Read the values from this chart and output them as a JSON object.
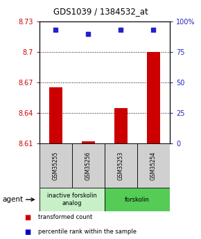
{
  "title": "GDS1039 / 1384532_at",
  "samples": [
    "GSM35255",
    "GSM35256",
    "GSM35253",
    "GSM35254"
  ],
  "red_values": [
    8.665,
    8.612,
    8.645,
    8.7
  ],
  "blue_values_pct": [
    93,
    90,
    93,
    93
  ],
  "ylim_left": [
    8.61,
    8.73
  ],
  "ylim_right": [
    0,
    100
  ],
  "yticks_left": [
    8.61,
    8.64,
    8.67,
    8.7,
    8.73
  ],
  "yticks_right": [
    0,
    25,
    50,
    75,
    100
  ],
  "ytick_labels_left": [
    "8.61",
    "8.64",
    "8.67",
    "8.7",
    "8.73"
  ],
  "ytick_labels_right": [
    "0",
    "25",
    "50",
    "75",
    "100%"
  ],
  "hlines": [
    8.7,
    8.67,
    8.64
  ],
  "groups": [
    {
      "label": "inactive forskolin\nanalog",
      "indices": [
        0,
        1
      ],
      "color": "#c8f0c8"
    },
    {
      "label": "forskolin",
      "indices": [
        2,
        3
      ],
      "color": "#55cc55"
    }
  ],
  "legend_items": [
    {
      "color": "#cc0000",
      "label": "transformed count"
    },
    {
      "color": "#0000cc",
      "label": "percentile rank within the sample"
    }
  ],
  "bar_color": "#cc0000",
  "dot_color": "#2222cc",
  "bar_baseline": 8.61,
  "background_color": "#ffffff",
  "label_color_left": "#cc0000",
  "label_color_right": "#2222bb",
  "sample_box_color": "#d0d0d0",
  "bar_width": 0.4
}
